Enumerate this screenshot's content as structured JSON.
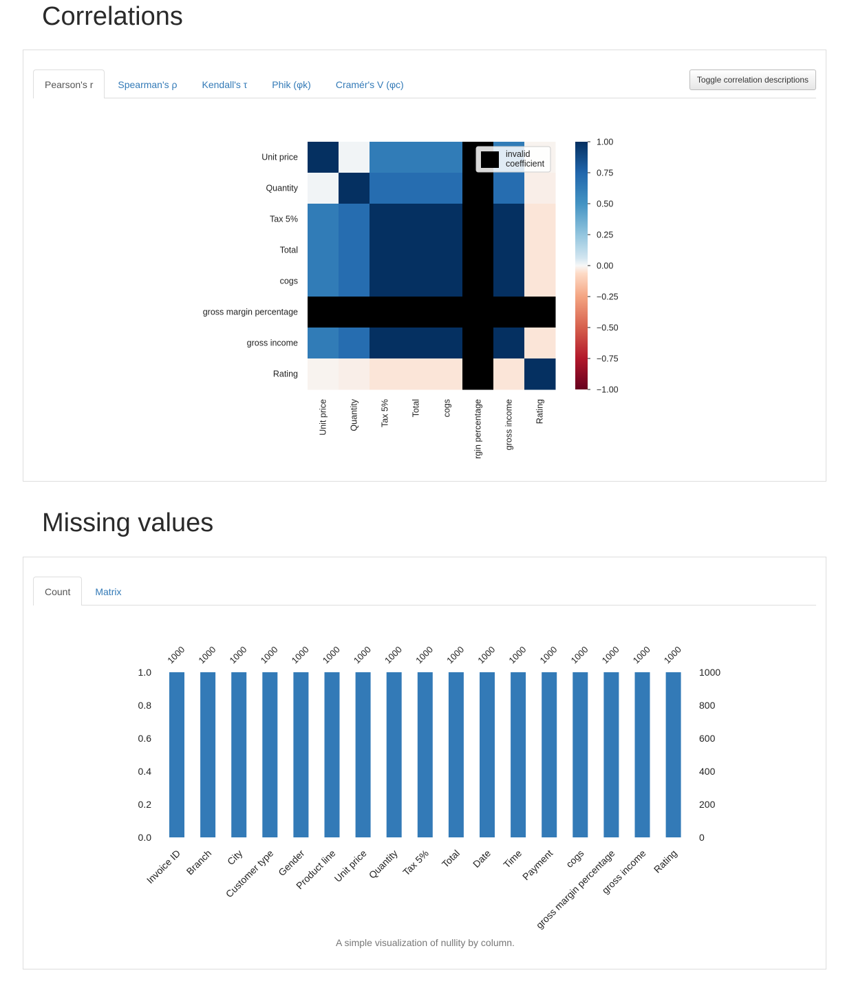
{
  "correlations": {
    "title": "Correlations",
    "tabs": [
      "Pearson's r",
      "Spearman's ρ",
      "Kendall's τ",
      "Phik (φk)",
      "Cramér's V (φc)"
    ],
    "active_tab": 0,
    "toggle_button_label": "Toggle correlation descriptions",
    "legend_label_line1": "invalid",
    "legend_label_line2": "coefficient",
    "chart_data": {
      "type": "heatmap",
      "row_labels": [
        "Unit price",
        "Quantity",
        "Tax 5%",
        "Total",
        "cogs",
        "gross margin percentage",
        "gross income",
        "Rating"
      ],
      "col_labels": [
        "Unit price",
        "Quantity",
        "Tax 5%",
        "Total",
        "cogs",
        "rgin percentage",
        "gross income",
        "Rating"
      ],
      "matrix": [
        [
          1.0,
          0.01,
          0.63,
          0.63,
          0.63,
          null,
          0.63,
          -0.01
        ],
        [
          0.01,
          1.0,
          0.71,
          0.71,
          0.71,
          null,
          0.71,
          -0.02
        ],
        [
          0.63,
          0.71,
          1.0,
          1.0,
          1.0,
          null,
          1.0,
          -0.04
        ],
        [
          0.63,
          0.71,
          1.0,
          1.0,
          1.0,
          null,
          1.0,
          -0.04
        ],
        [
          0.63,
          0.71,
          1.0,
          1.0,
          1.0,
          null,
          1.0,
          -0.04
        ],
        [
          null,
          null,
          null,
          null,
          null,
          null,
          null,
          null
        ],
        [
          0.63,
          0.71,
          1.0,
          1.0,
          1.0,
          null,
          1.0,
          -0.04
        ],
        [
          -0.01,
          -0.02,
          -0.04,
          -0.04,
          -0.04,
          null,
          -0.04,
          1.0
        ]
      ],
      "colorbar_ticks": [
        "1.00",
        "0.75",
        "0.50",
        "0.25",
        "0.00",
        "−0.25",
        "−0.50",
        "−0.75",
        "−1.00"
      ],
      "vmin": -1,
      "vmax": 1,
      "colormap": "RdBu",
      "invalid_color": "#000000"
    }
  },
  "missing_values": {
    "title": "Missing values",
    "tabs": [
      "Count",
      "Matrix"
    ],
    "active_tab": 0,
    "caption": "A simple visualization of nullity by column.",
    "chart_data": {
      "type": "bar",
      "categories": [
        "Invoice ID",
        "Branch",
        "City",
        "Customer type",
        "Gender",
        "Product line",
        "Unit price",
        "Quantity",
        "Tax 5%",
        "Total",
        "Date",
        "Time",
        "Payment",
        "cogs",
        "gross margin percentage",
        "gross income",
        "Rating"
      ],
      "values": [
        1.0,
        1.0,
        1.0,
        1.0,
        1.0,
        1.0,
        1.0,
        1.0,
        1.0,
        1.0,
        1.0,
        1.0,
        1.0,
        1.0,
        1.0,
        1.0,
        1.0
      ],
      "count_labels": [
        "1000",
        "1000",
        "1000",
        "1000",
        "1000",
        "1000",
        "1000",
        "1000",
        "1000",
        "1000",
        "1000",
        "1000",
        "1000",
        "1000",
        "1000",
        "1000",
        "1000"
      ],
      "left_ticks": [
        "0.0",
        "0.2",
        "0.4",
        "0.6",
        "0.8",
        "1.0"
      ],
      "right_ticks": [
        "0",
        "200",
        "400",
        "600",
        "800",
        "1000"
      ],
      "ylim": [
        0,
        1
      ],
      "bar_color": "#337ab7"
    }
  }
}
